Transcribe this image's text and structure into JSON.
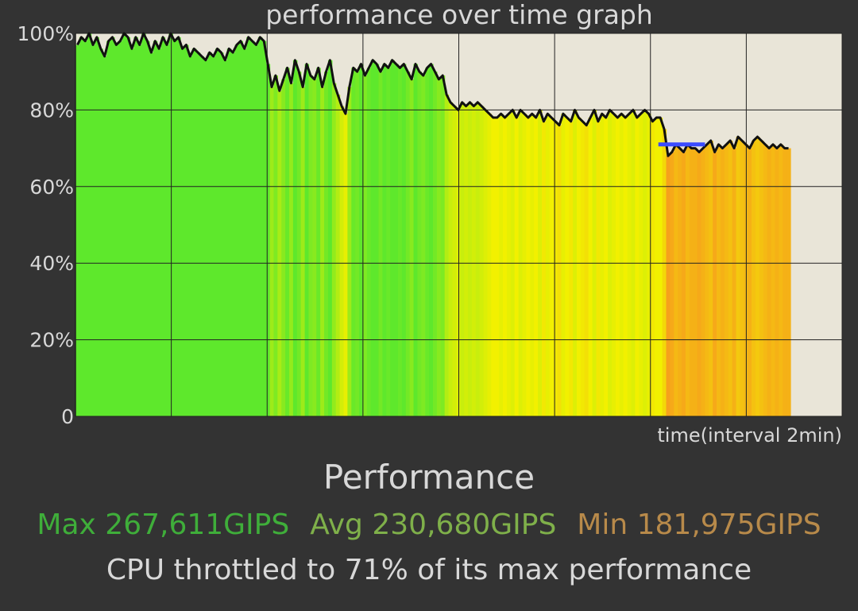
{
  "chart_data": {
    "type": "area",
    "title": "performance over time graph",
    "xlabel": "time(interval 2min)",
    "ylabel": "",
    "ylim": [
      0,
      100
    ],
    "y_ticks": [
      "0",
      "20%",
      "40%",
      "60%",
      "80%",
      "100%"
    ],
    "x_intervals": 8,
    "grid": true,
    "series": [
      {
        "values": [
          97,
          99,
          98,
          100,
          97,
          99,
          96,
          94,
          98,
          99,
          97,
          98,
          100,
          99,
          96,
          99,
          97,
          100,
          98,
          95,
          98,
          96,
          99,
          97,
          100,
          98,
          99,
          96,
          97,
          94,
          96,
          95,
          94,
          93,
          95,
          94,
          96,
          95,
          93,
          96,
          95,
          97,
          98,
          96,
          99,
          98,
          97,
          99,
          98,
          92,
          86,
          89,
          85,
          88,
          91,
          87,
          93,
          90,
          86,
          92,
          89,
          88,
          91,
          86,
          90,
          93,
          87,
          84,
          81,
          79,
          86,
          91,
          90,
          92,
          89,
          91,
          93,
          92,
          90,
          92,
          91,
          93,
          92,
          91,
          92,
          90,
          88,
          92,
          90,
          89,
          91,
          92,
          90,
          88,
          89,
          84,
          82,
          81,
          80,
          82,
          81,
          82,
          81,
          82,
          81,
          80,
          79,
          78,
          78,
          79,
          78,
          79,
          80,
          78,
          80,
          79,
          78,
          79,
          78,
          80,
          77,
          79,
          78,
          77,
          76,
          79,
          78,
          77,
          80,
          78,
          77,
          76,
          78,
          80,
          77,
          79,
          78,
          80,
          79,
          78,
          79,
          78,
          79,
          80,
          78,
          79,
          80,
          79,
          77,
          78,
          78,
          75,
          68,
          69,
          71,
          70,
          69,
          71,
          70,
          70,
          69,
          70,
          71,
          72,
          69,
          71,
          70,
          71,
          72,
          70,
          73,
          72,
          71,
          70,
          72,
          73,
          72,
          71,
          70,
          71,
          70,
          71,
          70,
          70
        ]
      },
      {
        "name": "",
        "color": "#3a4bff",
        "segment_start": 150,
        "segment_end": 162,
        "value": 71
      }
    ],
    "colors": {
      "background": "#333333",
      "plot_background": "#e9e5d8",
      "line": "#111111",
      "high": "#5ee82c",
      "mid": "#f2f000",
      "low": "#f6a11c",
      "grid": "#222222"
    }
  },
  "summary": {
    "section_title": "Performance",
    "max_label": "Max 267,611GIPS",
    "avg_label": "Avg 230,680GIPS",
    "min_label": "Min 181,975GIPS",
    "throttle_text": "CPU throttled to 71% of its max performance"
  }
}
